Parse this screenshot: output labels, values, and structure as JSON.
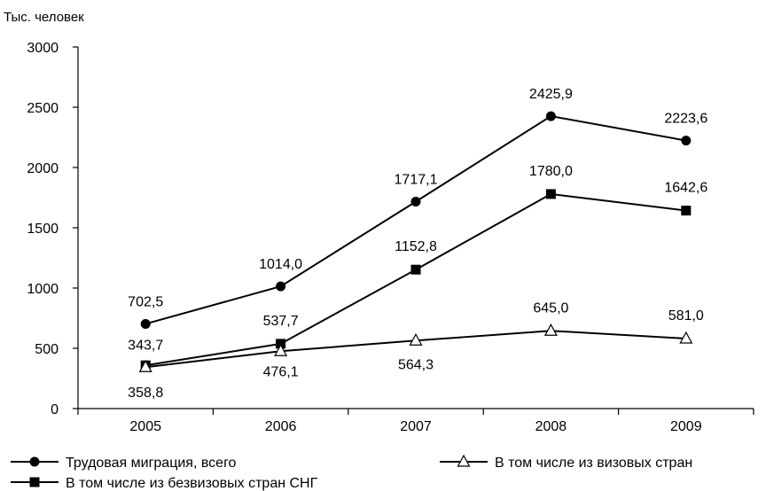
{
  "chart_data": {
    "type": "line",
    "ylabel": "Тыс. человек",
    "xlabel": "",
    "categories": [
      "2005",
      "2006",
      "2007",
      "2008",
      "2009"
    ],
    "ylim": [
      0,
      3000
    ],
    "yticks": [
      0,
      500,
      1000,
      1500,
      2000,
      2500,
      3000
    ],
    "grid": false,
    "legend_position": "bottom",
    "series": [
      {
        "name": "Трудовая миграция, всего",
        "marker": "circle",
        "values": [
          702.5,
          1014.0,
          1717.1,
          2425.9,
          2223.6
        ],
        "labels": [
          "702,5",
          "1014,0",
          "1717,1",
          "2425,9",
          "2223,6"
        ]
      },
      {
        "name": "В том числе из безвизовых стран СНГ",
        "marker": "square",
        "values": [
          358.8,
          537.7,
          1152.8,
          1780.0,
          1642.6
        ],
        "labels": [
          "358,8",
          "537,7",
          "1152,8",
          "1780,0",
          "1642,6"
        ]
      },
      {
        "name": "В том числе из визовых стран",
        "marker": "triangle-open",
        "values": [
          343.7,
          476.1,
          564.3,
          645.0,
          581.0
        ],
        "labels": [
          "343,7",
          "476,1",
          "564,3",
          "645,0",
          "581,0"
        ]
      }
    ]
  }
}
